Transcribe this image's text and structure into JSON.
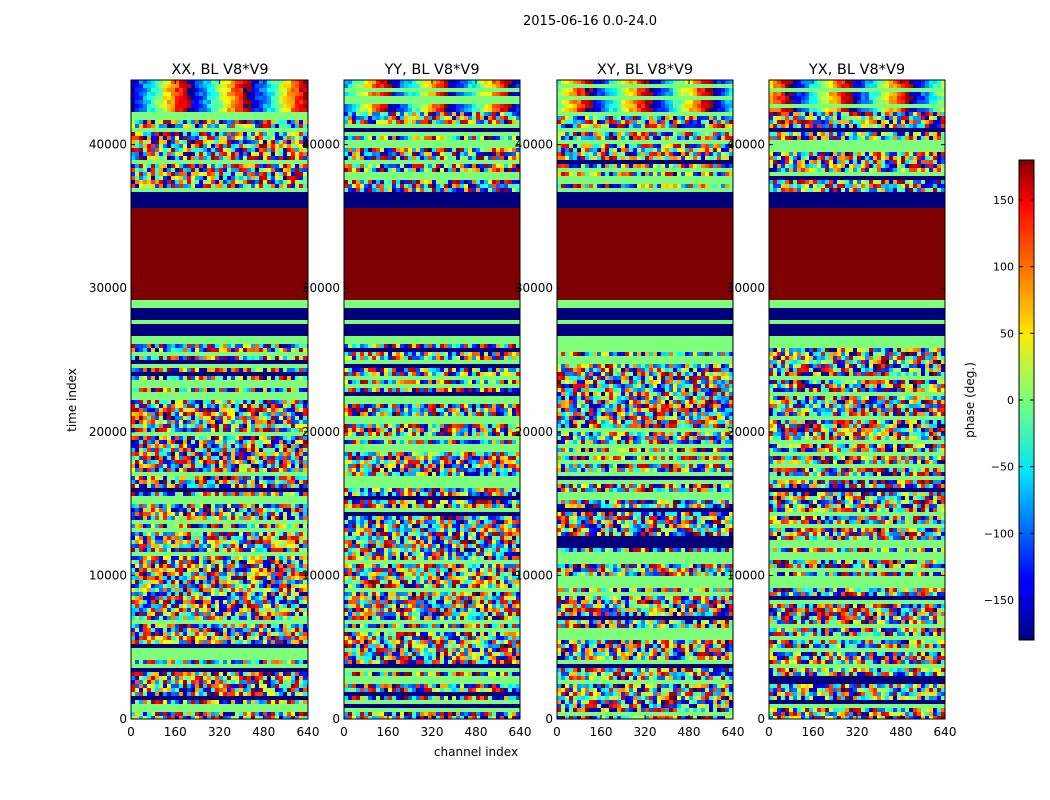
{
  "figure": {
    "suptitle": "2015-06-16 0.0-24.0"
  },
  "colormap": "jet",
  "chart_data": [
    {
      "type": "heatmap",
      "title": "XX, BL V8*V9",
      "xlabel": "channel index",
      "ylabel": "time index",
      "xlim": [
        0,
        640
      ],
      "ylim": [
        0,
        44500
      ],
      "xticks": [
        "0",
        "160",
        "320",
        "480",
        "640"
      ],
      "yticks": [
        "0",
        "10000",
        "20000",
        "30000",
        "40000"
      ],
      "value_range": [
        -180,
        180
      ]
    },
    {
      "type": "heatmap",
      "title": "YY, BL V8*V9",
      "xlabel": "channel index",
      "ylabel": "",
      "xlim": [
        0,
        640
      ],
      "ylim": [
        0,
        44500
      ],
      "xticks": [
        "0",
        "160",
        "320",
        "480",
        "640"
      ],
      "yticks": [
        "0",
        "10000",
        "20000",
        "30000",
        "40000"
      ],
      "value_range": [
        -180,
        180
      ]
    },
    {
      "type": "heatmap",
      "title": "XY, BL V8*V9",
      "xlabel": "",
      "ylabel": "",
      "xlim": [
        0,
        640
      ],
      "ylim": [
        0,
        44500
      ],
      "xticks": [
        "0",
        "160",
        "320",
        "480",
        "640"
      ],
      "yticks": [
        "0",
        "10000",
        "20000",
        "30000",
        "40000"
      ],
      "value_range": [
        -180,
        180
      ]
    },
    {
      "type": "heatmap",
      "title": "YX, BL V8*V9",
      "xlabel": "",
      "ylabel": "",
      "xlim": [
        0,
        640
      ],
      "ylim": [
        0,
        44500
      ],
      "xticks": [
        "0",
        "160",
        "320",
        "480",
        "640"
      ],
      "yticks": [
        "0",
        "10000",
        "20000",
        "30000",
        "40000"
      ],
      "value_range": [
        -180,
        180
      ]
    }
  ],
  "bands": [
    {
      "from": 26200,
      "to": 29300,
      "mode": "blue_green"
    },
    {
      "from": 29300,
      "to": 35700,
      "mode": "red"
    },
    {
      "from": 35700,
      "to": 36800,
      "mode": "blue"
    }
  ],
  "colorbar": {
    "label": "phase (deg.)",
    "range": [
      -180,
      180
    ],
    "ticks": [
      "150",
      "100",
      "50",
      "0",
      "−50",
      "−100",
      "−150"
    ],
    "tick_values": [
      150,
      100,
      50,
      0,
      -50,
      -100,
      -150
    ]
  }
}
